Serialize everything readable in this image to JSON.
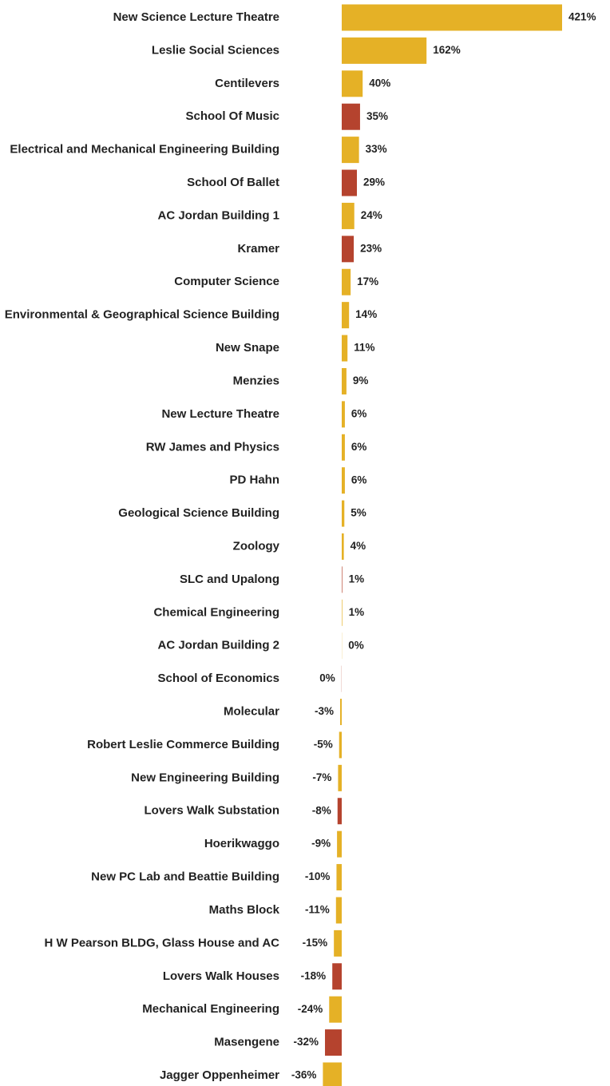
{
  "chart_data": {
    "type": "bar",
    "orientation": "horizontal",
    "categories": [
      "New Science Lecture Theatre",
      "Leslie Social Sciences",
      "Centilevers",
      "School Of Music",
      "Electrical and Mechanical Engineering Building",
      "School Of Ballet",
      "AC Jordan Building 1",
      "Kramer",
      "Computer Science",
      "Environmental & Geographical Science Building",
      "New Snape",
      "Menzies",
      "New Lecture Theatre",
      "RW James and Physics",
      "PD Hahn",
      "Geological Science Building",
      "Zoology",
      "SLC and Upalong",
      "Chemical Engineering",
      "AC Jordan Building 2",
      "School of Economics",
      "Molecular",
      "Robert Leslie Commerce Building",
      "New Engineering Building",
      "Lovers Walk Substation",
      "Hoerikwaggo",
      "New PC Lab and Beattie Building",
      "Maths Block",
      "H W Pearson BLDG, Glass House and AC",
      "Lovers Walk Houses",
      "Mechanical Engineering",
      "Masengene",
      "Jagger Oppenheimer"
    ],
    "values": [
      421,
      162,
      40,
      35,
      33,
      29,
      24,
      23,
      17,
      14,
      11,
      9,
      6,
      6,
      6,
      5,
      4,
      1,
      1,
      0.3,
      -0.3,
      -3,
      -5,
      -7,
      -8,
      -9,
      -10,
      -11,
      -15,
      -18,
      -24,
      -32,
      -36
    ],
    "value_labels": [
      "421%",
      "162%",
      "40%",
      "35%",
      "33%",
      "29%",
      "24%",
      "23%",
      "17%",
      "14%",
      "11%",
      "9%",
      "6%",
      "6%",
      "6%",
      "5%",
      "4%",
      "1%",
      "1%",
      "0%",
      "0%",
      "-3%",
      "-5%",
      "-7%",
      "-8%",
      "-9%",
      "-10%",
      "-11%",
      "-15%",
      "-18%",
      "-24%",
      "-32%",
      "-36%"
    ],
    "colors": [
      "#e5b126",
      "#e5b126",
      "#e5b126",
      "#b5432e",
      "#e5b126",
      "#b5432e",
      "#e5b126",
      "#b5432e",
      "#e5b126",
      "#e5b126",
      "#e5b126",
      "#e5b126",
      "#e5b126",
      "#e5b126",
      "#e5b126",
      "#e5b126",
      "#e5b126",
      "#b5432e",
      "#e5b126",
      "#e5b126",
      "#b5432e",
      "#e5b126",
      "#e5b126",
      "#e5b126",
      "#b5432e",
      "#e5b126",
      "#e5b126",
      "#e5b126",
      "#e5b126",
      "#b5432e",
      "#e5b126",
      "#b5432e",
      "#e5b126"
    ],
    "xlim": [
      -36,
      421
    ]
  }
}
